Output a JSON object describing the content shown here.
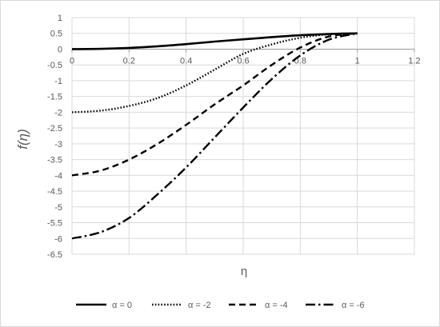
{
  "chart_data": {
    "type": "line",
    "title": "",
    "xlabel": "η",
    "ylabel": "f(η)",
    "xlim": [
      0,
      1.2
    ],
    "ylim": [
      -6.5,
      1
    ],
    "x_ticks": [
      "0",
      "0.2",
      "0.4",
      "0.6",
      "0.8",
      "1",
      "1.2"
    ],
    "y_ticks": [
      "1",
      "0.5",
      "0",
      "-0.5",
      "-1",
      "-1.5",
      "-2",
      "-2.5",
      "-3",
      "-3.5",
      "-4",
      "-4.5",
      "-5",
      "-5.5",
      "-6",
      "-6.5"
    ],
    "grid": true,
    "legend_position": "bottom",
    "series": [
      {
        "name": "α = 0",
        "line_style": "solid",
        "points": [
          [
            0,
            0
          ],
          [
            0.1,
            0.01
          ],
          [
            0.2,
            0.04
          ],
          [
            0.3,
            0.09
          ],
          [
            0.4,
            0.16
          ],
          [
            0.5,
            0.24
          ],
          [
            0.6,
            0.31
          ],
          [
            0.7,
            0.38
          ],
          [
            0.8,
            0.44
          ],
          [
            0.9,
            0.48
          ],
          [
            1.0,
            0.5
          ]
        ]
      },
      {
        "name": "α = -2",
        "line_style": "dotted",
        "points": [
          [
            0,
            -2
          ],
          [
            0.1,
            -1.95
          ],
          [
            0.2,
            -1.8
          ],
          [
            0.3,
            -1.55
          ],
          [
            0.4,
            -1.15
          ],
          [
            0.5,
            -0.65
          ],
          [
            0.6,
            -0.15
          ],
          [
            0.7,
            0.15
          ],
          [
            0.8,
            0.36
          ],
          [
            0.9,
            0.47
          ],
          [
            1.0,
            0.5
          ]
        ]
      },
      {
        "name": "α = -4",
        "line_style": "dashed",
        "points": [
          [
            0,
            -4
          ],
          [
            0.1,
            -3.85
          ],
          [
            0.2,
            -3.5
          ],
          [
            0.3,
            -3.0
          ],
          [
            0.4,
            -2.4
          ],
          [
            0.5,
            -1.75
          ],
          [
            0.6,
            -1.15
          ],
          [
            0.7,
            -0.5
          ],
          [
            0.8,
            0.05
          ],
          [
            0.9,
            0.4
          ],
          [
            1.0,
            0.5
          ]
        ]
      },
      {
        "name": "α = -6",
        "line_style": "dash-dot",
        "points": [
          [
            0,
            -6
          ],
          [
            0.1,
            -5.8
          ],
          [
            0.2,
            -5.35
          ],
          [
            0.3,
            -4.6
          ],
          [
            0.4,
            -3.75
          ],
          [
            0.5,
            -2.8
          ],
          [
            0.6,
            -1.85
          ],
          [
            0.7,
            -0.95
          ],
          [
            0.8,
            -0.2
          ],
          [
            0.9,
            0.3
          ],
          [
            1.0,
            0.5
          ]
        ]
      }
    ]
  }
}
